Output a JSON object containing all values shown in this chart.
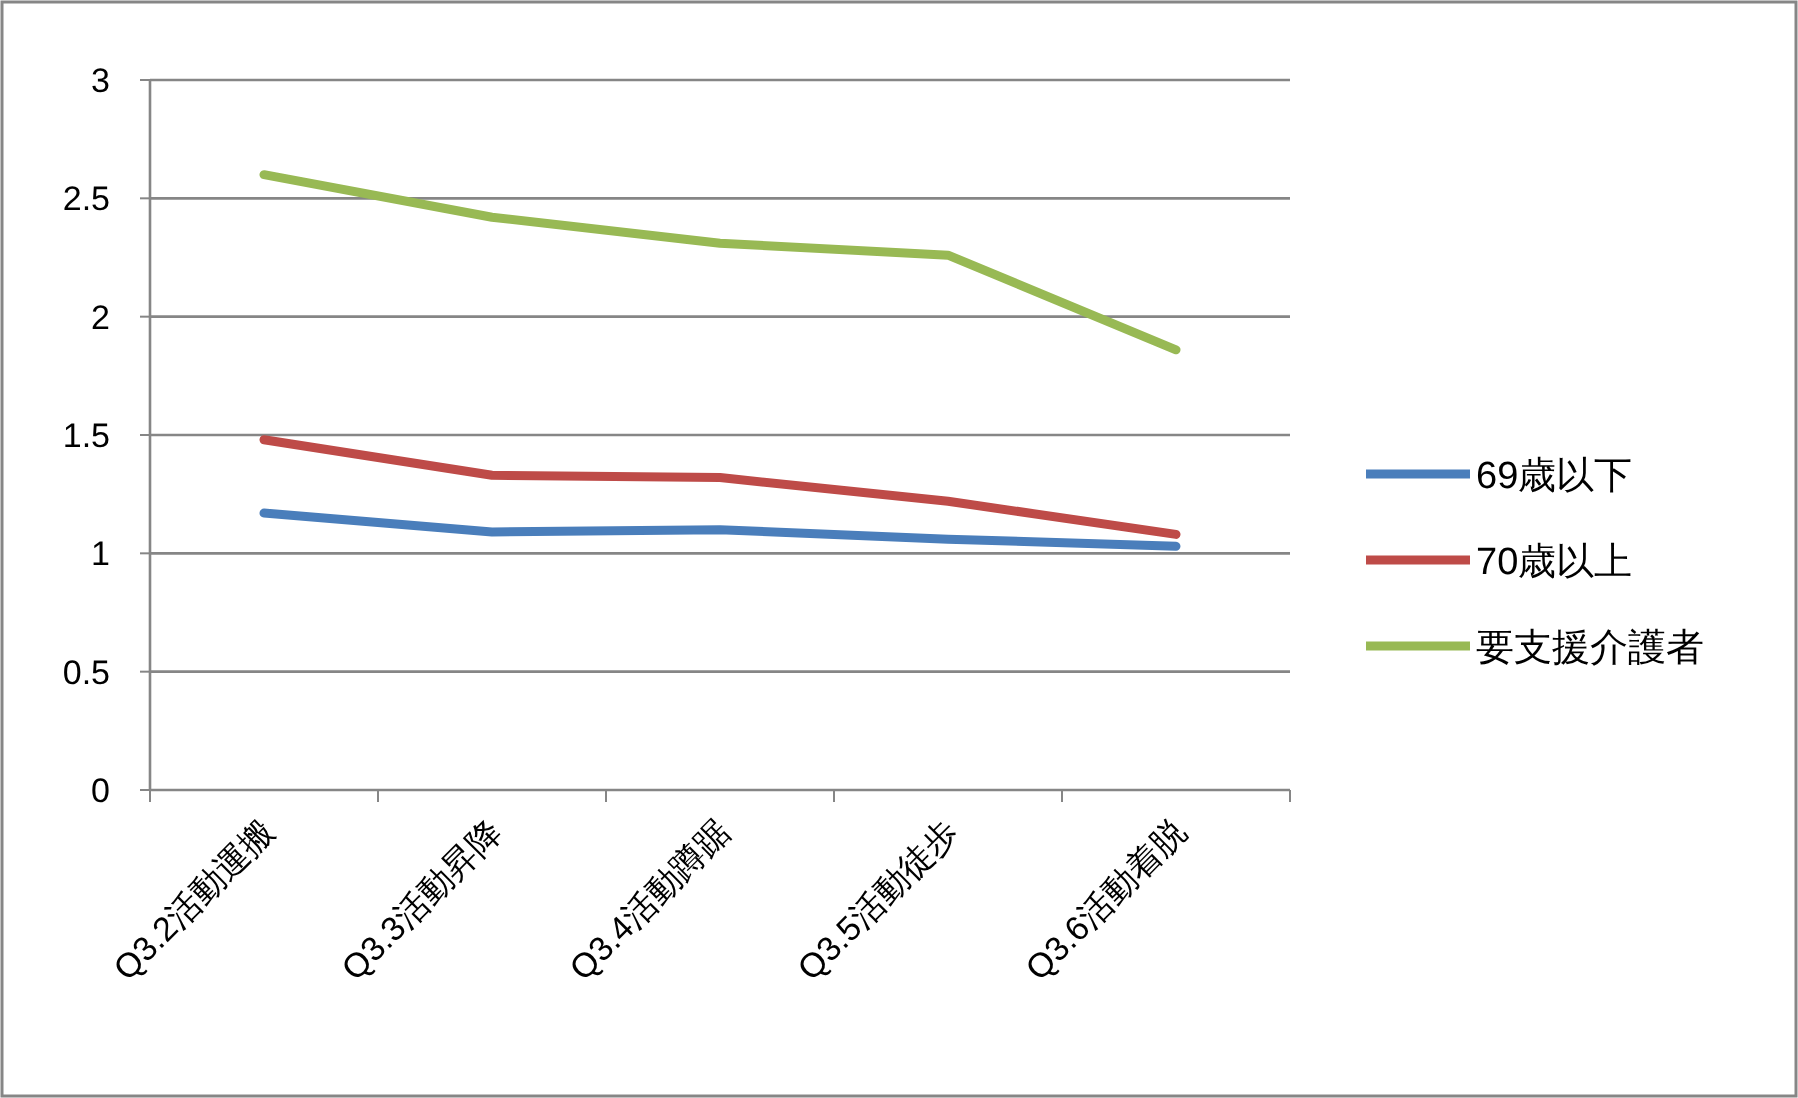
{
  "chart_data": {
    "type": "line",
    "categories": [
      "Q3.2活動運搬",
      "Q3.3活動昇降",
      "Q3.4活動蹲踞",
      "Q3.5活動徒歩",
      "Q3.6活動着脱"
    ],
    "ylim": [
      0,
      3
    ],
    "yticks": [
      0,
      0.5,
      1,
      1.5,
      2,
      2.5,
      3
    ],
    "grid": "y",
    "legend": "right",
    "marker": "none",
    "line_style": "solid",
    "series": [
      {
        "name": "69歳以下",
        "color": "#4a7ebb",
        "values": [
          1.17,
          1.09,
          1.1,
          1.06,
          1.03
        ]
      },
      {
        "name": "70歳以上",
        "color": "#be4b48",
        "values": [
          1.48,
          1.33,
          1.32,
          1.22,
          1.08
        ]
      },
      {
        "name": "要支援介護者",
        "color": "#98b954",
        "values": [
          2.6,
          2.42,
          2.31,
          2.26,
          1.86
        ]
      }
    ]
  }
}
